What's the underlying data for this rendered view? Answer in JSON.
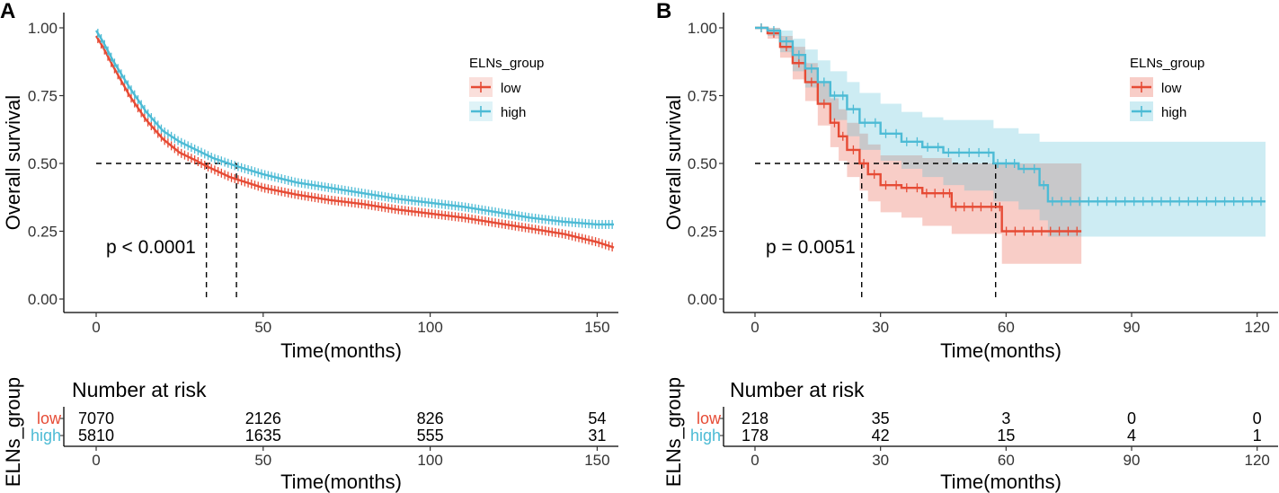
{
  "colors": {
    "low": "#E64B35",
    "high": "#4DBBD5"
  },
  "chart_data": [
    {
      "type": "line",
      "panel_label": "A",
      "title": "",
      "xlabel": "Time(months)",
      "ylabel": "Overall survival",
      "xlim": [
        0,
        155
      ],
      "ylim": [
        0,
        1
      ],
      "xticks": [
        0,
        50,
        100,
        150
      ],
      "yticks": [
        "0.00",
        "0.25",
        "0.50",
        "0.75",
        "1.00"
      ],
      "pvalue_text": "p < 0.0001",
      "median_lines": [
        33,
        42
      ],
      "legend": {
        "title": "ELNs_group",
        "items": [
          "low",
          "high"
        ],
        "position": "top-right"
      },
      "series": [
        {
          "name": "low",
          "censor_marks": true,
          "ci": false,
          "x": [
            0,
            2,
            5,
            10,
            15,
            20,
            25,
            30,
            33,
            40,
            50,
            60,
            70,
            80,
            90,
            100,
            110,
            120,
            130,
            140,
            150,
            155
          ],
          "y": [
            0.97,
            0.93,
            0.86,
            0.75,
            0.66,
            0.59,
            0.54,
            0.51,
            0.49,
            0.45,
            0.41,
            0.385,
            0.365,
            0.35,
            0.33,
            0.315,
            0.3,
            0.28,
            0.26,
            0.24,
            0.21,
            0.19
          ]
        },
        {
          "name": "high",
          "censor_marks": true,
          "ci": false,
          "x": [
            0,
            2,
            5,
            10,
            15,
            20,
            25,
            30,
            35,
            42,
            50,
            60,
            70,
            80,
            90,
            100,
            110,
            120,
            130,
            140,
            150,
            155
          ],
          "y": [
            0.99,
            0.95,
            0.88,
            0.78,
            0.69,
            0.62,
            0.58,
            0.55,
            0.52,
            0.49,
            0.46,
            0.43,
            0.41,
            0.39,
            0.37,
            0.355,
            0.34,
            0.32,
            0.3,
            0.285,
            0.275,
            0.275
          ]
        }
      ],
      "risk_table": {
        "title": "Number at risk",
        "ylabel": "ELNs_group",
        "xlabel": "Time(months)",
        "times": [
          0,
          50,
          100,
          150
        ],
        "rows": [
          {
            "name": "low",
            "values": [
              "7070",
              "2126",
              "826",
              "54"
            ]
          },
          {
            "name": "high",
            "values": [
              "5810",
              "1635",
              "555",
              "31"
            ]
          }
        ]
      }
    },
    {
      "type": "line",
      "panel_label": "B",
      "title": "",
      "xlabel": "Time(months)",
      "ylabel": "Overall survival",
      "xlim": [
        0,
        122
      ],
      "ylim": [
        0,
        1
      ],
      "xticks": [
        0,
        30,
        60,
        90,
        120
      ],
      "yticks": [
        "0.00",
        "0.25",
        "0.50",
        "0.75",
        "1.00"
      ],
      "pvalue_text": "p = 0.0051",
      "median_lines": [
        25.5,
        57.5
      ],
      "legend": {
        "title": "ELNs_group",
        "items": [
          "low",
          "high"
        ],
        "position": "top-right"
      },
      "series": [
        {
          "name": "low",
          "censor_marks": true,
          "ci": true,
          "x_end": 78,
          "x": [
            0,
            3,
            6,
            9,
            12,
            15,
            18,
            20,
            22,
            25,
            27,
            30,
            35,
            40,
            46,
            47,
            55,
            58,
            59
          ],
          "y": [
            1.0,
            0.98,
            0.93,
            0.87,
            0.8,
            0.72,
            0.65,
            0.6,
            0.55,
            0.5,
            0.46,
            0.42,
            0.41,
            0.39,
            0.39,
            0.34,
            0.34,
            0.34,
            0.25
          ],
          "ci_lower": [
            1.0,
            0.96,
            0.89,
            0.81,
            0.73,
            0.64,
            0.56,
            0.51,
            0.45,
            0.4,
            0.36,
            0.32,
            0.3,
            0.27,
            0.27,
            0.24,
            0.24,
            0.24,
            0.13
          ],
          "ci_upper": [
            1.0,
            1.0,
            0.97,
            0.93,
            0.87,
            0.8,
            0.74,
            0.7,
            0.65,
            0.61,
            0.57,
            0.53,
            0.53,
            0.52,
            0.52,
            0.5,
            0.5,
            0.5,
            0.5
          ]
        },
        {
          "name": "high",
          "censor_marks": true,
          "ci": true,
          "x_end": 122,
          "x": [
            0,
            3,
            6,
            9,
            12,
            15,
            18,
            22,
            25,
            30,
            35,
            40,
            45,
            50,
            57,
            63,
            68,
            70
          ],
          "y": [
            1.0,
            0.99,
            0.95,
            0.9,
            0.85,
            0.8,
            0.75,
            0.7,
            0.65,
            0.61,
            0.58,
            0.56,
            0.54,
            0.54,
            0.5,
            0.48,
            0.42,
            0.36
          ],
          "ci_lower": [
            1.0,
            0.97,
            0.91,
            0.84,
            0.78,
            0.72,
            0.66,
            0.6,
            0.55,
            0.51,
            0.48,
            0.45,
            0.42,
            0.4,
            0.36,
            0.33,
            0.29,
            0.23
          ],
          "ci_upper": [
            1.0,
            1.0,
            0.99,
            0.96,
            0.92,
            0.88,
            0.84,
            0.8,
            0.76,
            0.72,
            0.69,
            0.67,
            0.66,
            0.66,
            0.63,
            0.61,
            0.58,
            0.58
          ]
        }
      ],
      "risk_table": {
        "title": "Number at risk",
        "ylabel": "ELNs_group",
        "xlabel": "Time(months)",
        "times": [
          0,
          30,
          60,
          90,
          120
        ],
        "rows": [
          {
            "name": "low",
            "values": [
              "218",
              "35",
              "3",
              "0",
              "0"
            ]
          },
          {
            "name": "high",
            "values": [
              "178",
              "42",
              "15",
              "4",
              "1"
            ]
          }
        ]
      }
    }
  ]
}
